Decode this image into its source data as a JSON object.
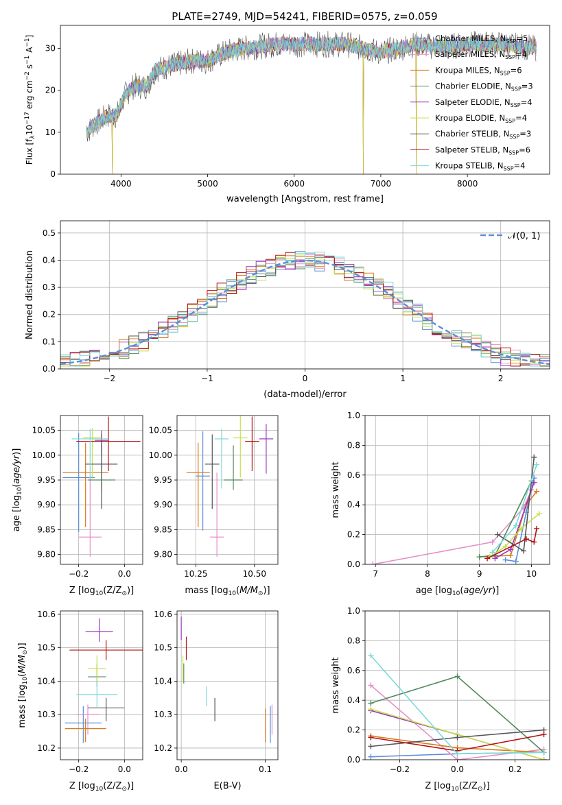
{
  "figure_title": "PLATE=2749, MJD=54241, FIBERID=0575, z=0.059",
  "colors": [
    "#5b8fd6",
    "#e58fc6",
    "#d97a1d",
    "#4f8a5b",
    "#9b34c4",
    "#c8e04a",
    "#555555",
    "#b01414",
    "#7dd9d9"
  ],
  "chart_data": [
    {
      "id": "spectrum",
      "type": "line",
      "title": "PLATE=2749, MJD=54241, FIBERID=0575, z=0.059",
      "xlabel": "wavelength [Angstrom, rest frame]",
      "ylabel": "Flux [f",
      "xlim": [
        3300,
        8950
      ],
      "ylim": [
        0,
        35.5
      ],
      "xticks": [
        4000,
        5000,
        6000,
        7000,
        8000
      ],
      "yticks": [
        0,
        10,
        20,
        30
      ],
      "xtick_labels": [
        "4000",
        "5000",
        "6000",
        "7000",
        "8000"
      ],
      "ytick_labels": [
        "0",
        "10",
        "20",
        "30"
      ],
      "legend_position": "right",
      "legend": [
        {
          "model": "Chabrier MILES",
          "n": "5"
        },
        {
          "model": "Salpeter MILES",
          "n": "4"
        },
        {
          "model": "Kroupa MILES",
          "n": "6"
        },
        {
          "model": "Chabrier ELODIE",
          "n": "3"
        },
        {
          "model": "Salpeter ELODIE",
          "n": "4"
        },
        {
          "model": "Kroupa ELODIE",
          "n": "4"
        },
        {
          "model": "Chabrier STELIB",
          "n": "3"
        },
        {
          "model": "Salpeter STELIB",
          "n": "6"
        },
        {
          "model": "Kroupa STELIB",
          "n": "4"
        }
      ],
      "continuum": {
        "x": [
          3600,
          3700,
          3850,
          3950,
          4050,
          4150,
          4300,
          4400,
          4600,
          4800,
          5000,
          5200,
          5400,
          5600,
          5800,
          6000,
          6200,
          6400,
          6600,
          6800,
          7000,
          7200,
          7400,
          7600,
          7800,
          8000,
          8200,
          8400,
          8600,
          8800
        ],
        "y": [
          10,
          12,
          14,
          14,
          19,
          21,
          21,
          25,
          26,
          27,
          27,
          29,
          30,
          30.5,
          31,
          31,
          31,
          31,
          31,
          30,
          29,
          30,
          31,
          30.5,
          30.5,
          31,
          31,
          31,
          30.5,
          30
        ]
      },
      "gaps": [
        {
          "x": 3900,
          "y": 0
        },
        {
          "x": 6800,
          "y": 0
        },
        {
          "x": 7410,
          "y": 0
        }
      ]
    },
    {
      "id": "residuals",
      "type": "histogram",
      "xlabel": "(data-model)/error",
      "ylabel": "Normed distribution",
      "xlim": [
        -2.5,
        2.5
      ],
      "ylim": [
        0,
        0.545
      ],
      "xticks": [
        -2,
        -1,
        0,
        1,
        2
      ],
      "yticks": [
        0,
        0.1,
        0.2,
        0.3,
        0.4,
        0.5
      ],
      "xtick_labels": [
        "−2",
        "−1",
        "0",
        "1",
        "2"
      ],
      "ytick_labels": [
        "0.0",
        "0.1",
        "0.2",
        "0.3",
        "0.4",
        "0.5"
      ],
      "legend_label": "𝒩(0, 1)",
      "legend_position": "top-right",
      "bin_width": 0.1,
      "series_offsets": [
        0.012,
        -0.018,
        0.02,
        -0.01,
        0.025,
        -0.022,
        0.005,
        0.015,
        -0.03
      ]
    },
    {
      "id": "age-vs-Z",
      "type": "scatter",
      "xlabel": "Z [log",
      "xlabel_tail": "(Z/Z",
      "ylabel": "age  [log",
      "xlim": [
        -0.28,
        0.08
      ],
      "ylim": [
        9.78,
        10.08
      ],
      "xticks": [
        -0.2,
        0.0
      ],
      "yticks": [
        9.8,
        9.85,
        9.9,
        9.95,
        10.0,
        10.05
      ],
      "xtick_labels": [
        "−0.2",
        "0.0"
      ],
      "ytick_labels": [
        "9.80",
        "9.85",
        "9.90",
        "9.95",
        "10.00",
        "10.05"
      ],
      "points": [
        {
          "x": -0.2,
          "y": 9.955,
          "dx": 0.07,
          "dy_lo": 0.11,
          "dy_hi": 0.09
        },
        {
          "x": -0.15,
          "y": 9.835,
          "dx": 0.05,
          "dy_lo": 0.04,
          "dy_hi": 0.13
        },
        {
          "x": -0.17,
          "y": 9.965,
          "dx": 0.1,
          "dy_lo": 0.11,
          "dy_hi": 0.06
        },
        {
          "x": -0.1,
          "y": 9.95,
          "dx": 0.06,
          "dy_lo": 0.02,
          "dy_hi": 0.07
        },
        {
          "x": -0.1,
          "y": 10.03,
          "dx": 0.03,
          "dy_lo": 0.03,
          "dy_hi": 0.02
        },
        {
          "x": -0.14,
          "y": 10.035,
          "dx": 0.04,
          "dy_lo": 0.08,
          "dy_hi": 0.02
        },
        {
          "x": -0.1,
          "y": 9.982,
          "dx": 0.07,
          "dy_lo": 0.09,
          "dy_hi": 0.06
        },
        {
          "x": -0.07,
          "y": 10.028,
          "dx": 0.14,
          "dy_lo": 0.06,
          "dy_hi": 0.05
        },
        {
          "x": -0.15,
          "y": 10.033,
          "dx": 0.08,
          "dy_lo": 0.08,
          "dy_hi": 0.02
        }
      ]
    },
    {
      "id": "age-vs-mass",
      "type": "scatter",
      "xlabel": "mass [log",
      "xlabel_tail": "(M/M",
      "xlim": [
        10.17,
        10.6
      ],
      "ylim": [
        9.78,
        10.08
      ],
      "xticks": [
        10.25,
        10.5
      ],
      "yticks": [
        9.8,
        9.85,
        9.9,
        9.95,
        10.0,
        10.05
      ],
      "xtick_labels": [
        "10.25",
        "10.50"
      ],
      "ytick_labels": [
        "9.80",
        "9.85",
        "9.90",
        "9.95",
        "10.00",
        "10.05"
      ],
      "points": [
        {
          "x": 10.28,
          "y": 9.958,
          "dx": 0.03,
          "dy_lo": 0.11,
          "dy_hi": 0.09
        },
        {
          "x": 10.34,
          "y": 9.835,
          "dx": 0.03,
          "dy_lo": 0.04,
          "dy_hi": 0.13
        },
        {
          "x": 10.26,
          "y": 9.965,
          "dx": 0.05,
          "dy_lo": 0.11,
          "dy_hi": 0.06
        },
        {
          "x": 10.41,
          "y": 9.95,
          "dx": 0.04,
          "dy_lo": 0.02,
          "dy_hi": 0.07
        },
        {
          "x": 10.55,
          "y": 10.033,
          "dx": 0.03,
          "dy_lo": 0.07,
          "dy_hi": 0.03
        },
        {
          "x": 10.44,
          "y": 10.035,
          "dx": 0.03,
          "dy_lo": 0.08,
          "dy_hi": 0.05
        },
        {
          "x": 10.32,
          "y": 9.982,
          "dx": 0.03,
          "dy_lo": 0.09,
          "dy_hi": 0.06
        },
        {
          "x": 10.49,
          "y": 10.028,
          "dx": 0.03,
          "dy_lo": 0.06,
          "dy_hi": 0.05
        },
        {
          "x": 10.36,
          "y": 10.033,
          "dx": 0.03,
          "dy_lo": 0.1,
          "dy_hi": 0.02
        }
      ]
    },
    {
      "id": "weight-vs-age",
      "type": "line",
      "xlabel": "age  [log",
      "ylabel": "mass weight",
      "xlim": [
        6.8,
        10.35
      ],
      "ylim": [
        0,
        1
      ],
      "xticks": [
        7,
        8,
        9,
        10
      ],
      "yticks": [
        0,
        0.2,
        0.4,
        0.6,
        0.8,
        1.0
      ],
      "xtick_labels": [
        "7",
        "8",
        "9",
        "10"
      ],
      "ytick_labels": [
        "0.0",
        "0.2",
        "0.4",
        "0.6",
        "0.8",
        "1.0"
      ],
      "series": [
        {
          "x": [
            9.5,
            9.7,
            9.9,
            10.05
          ],
          "y": [
            0.03,
            0.02,
            0.35,
            0.58
          ]
        },
        {
          "x": [
            6.95,
            9.25,
            9.85,
            10.0
          ],
          "y": [
            0.0,
            0.15,
            0.38,
            0.5
          ]
        },
        {
          "x": [
            9.0,
            9.6,
            9.9,
            10.1
          ],
          "y": [
            0.05,
            0.06,
            0.4,
            0.49
          ]
        },
        {
          "x": [
            9.0,
            9.3,
            10.0
          ],
          "y": [
            0.05,
            0.06,
            0.56
          ]
        },
        {
          "x": [
            9.3,
            9.6,
            10.05
          ],
          "y": [
            0.04,
            0.1,
            0.55
          ]
        },
        {
          "x": [
            9.2,
            9.5,
            9.8,
            10.15
          ],
          "y": [
            0.05,
            0.12,
            0.24,
            0.34
          ]
        },
        {
          "x": [
            9.35,
            9.85,
            10.05
          ],
          "y": [
            0.2,
            0.09,
            0.72
          ]
        },
        {
          "x": [
            9.15,
            9.9,
            10.05,
            10.1
          ],
          "y": [
            0.04,
            0.17,
            0.15,
            0.24
          ]
        },
        {
          "x": [
            9.25,
            9.7,
            10.1
          ],
          "y": [
            0.08,
            0.26,
            0.67
          ]
        }
      ]
    },
    {
      "id": "mass-vs-Z",
      "type": "scatter",
      "xlabel": "Z [log",
      "xlabel_tail": "(Z/Z",
      "ylabel": "mass [log",
      "xlim": [
        -0.28,
        0.08
      ],
      "ylim": [
        10.165,
        10.61
      ],
      "xticks": [
        -0.2,
        0.0
      ],
      "yticks": [
        10.2,
        10.3,
        10.4,
        10.5,
        10.6
      ],
      "xtick_labels": [
        "−0.2",
        "0.0"
      ],
      "ytick_labels": [
        "10.2",
        "10.3",
        "10.4",
        "10.5",
        "10.6"
      ],
      "points": [
        {
          "x": -0.18,
          "y": 10.275,
          "dx": 0.08,
          "dy_lo": 0.06,
          "dy_hi": 0.05
        },
        {
          "x": -0.16,
          "y": 10.3,
          "dx": 0.05,
          "dy_lo": 0.06,
          "dy_hi": 0.03
        },
        {
          "x": -0.17,
          "y": 10.258,
          "dx": 0.09,
          "dy_lo": 0.04,
          "dy_hi": 0.03
        },
        {
          "x": -0.12,
          "y": 10.413,
          "dx": 0.04,
          "dy_lo": 0.03,
          "dy_hi": 0.04
        },
        {
          "x": -0.11,
          "y": 10.548,
          "dx": 0.06,
          "dy_lo": 0.03,
          "dy_hi": 0.04
        },
        {
          "x": -0.12,
          "y": 10.437,
          "dx": 0.04,
          "dy_lo": 0.04,
          "dy_hi": 0.04
        },
        {
          "x": -0.08,
          "y": 10.32,
          "dx": 0.08,
          "dy_lo": 0.04,
          "dy_hi": 0.03
        },
        {
          "x": -0.08,
          "y": 10.493,
          "dx": 0.16,
          "dy_lo": 0.03,
          "dy_hi": 0.03
        },
        {
          "x": -0.12,
          "y": 10.36,
          "dx": 0.09,
          "dy_lo": 0.04,
          "dy_hi": 0.04
        }
      ]
    },
    {
      "id": "mass-vs-ebv",
      "type": "scatter",
      "xlabel": "E(B-V)",
      "xlim": [
        -0.005,
        0.115
      ],
      "ylim": [
        10.165,
        10.61
      ],
      "xticks": [
        0.0,
        0.1
      ],
      "yticks": [
        10.2,
        10.3,
        10.4,
        10.5,
        10.6
      ],
      "xtick_labels": [
        "0.0",
        "0.1"
      ],
      "ytick_labels": [
        "10.2",
        "10.3",
        "10.4",
        "10.5",
        "10.6"
      ],
      "points": [
        {
          "x": 0.106,
          "y": 10.275,
          "dy_lo": 0.06,
          "dy_hi": 0.05
        },
        {
          "x": 0.108,
          "y": 10.3,
          "dy_lo": 0.06,
          "dy_hi": 0.03
        },
        {
          "x": 0.1,
          "y": 10.258,
          "dy_lo": 0.04,
          "dy_hi": 0.06
        },
        {
          "x": 0.003,
          "y": 10.413,
          "dy_lo": 0.02,
          "dy_hi": 0.04
        },
        {
          "x": 0.0,
          "y": 10.553,
          "dy_lo": 0.03,
          "dy_hi": 0.04
        },
        {
          "x": 0.002,
          "y": 10.437,
          "dy_lo": 0.04,
          "dy_hi": 0.04
        },
        {
          "x": 0.04,
          "y": 10.32,
          "dy_lo": 0.04,
          "dy_hi": 0.03
        },
        {
          "x": 0.006,
          "y": 10.493,
          "dy_lo": 0.03,
          "dy_hi": 0.04
        },
        {
          "x": 0.03,
          "y": 10.355,
          "dy_lo": 0.03,
          "dy_hi": 0.03
        }
      ]
    },
    {
      "id": "weight-vs-Z",
      "type": "line",
      "xlabel": "Z [log",
      "xlabel_tail": "(Z/Z",
      "ylabel": "mass weight",
      "xlim": [
        -0.32,
        0.32
      ],
      "ylim": [
        0,
        1
      ],
      "xticks": [
        -0.2,
        0.0,
        0.2
      ],
      "yticks": [
        0,
        0.2,
        0.4,
        0.6,
        0.8,
        1.0
      ],
      "xtick_labels": [
        "−0.2",
        "0.0",
        "0.2"
      ],
      "ytick_labels": [
        "0.0",
        "0.2",
        "0.4",
        "0.6",
        "0.8",
        "1.0"
      ],
      "series": [
        {
          "x": [
            -0.3,
            0.0,
            0.3
          ],
          "y": [
            0.02,
            0.04,
            0.05
          ]
        },
        {
          "x": [
            -0.3,
            0.0,
            0.3
          ],
          "y": [
            0.5,
            0.0,
            0.07
          ]
        },
        {
          "x": [
            -0.3,
            0.0,
            0.3
          ],
          "y": [
            0.16,
            0.08,
            0.05
          ]
        },
        {
          "x": [
            -0.3,
            0.0,
            0.3
          ],
          "y": [
            0.38,
            0.56,
            0.05
          ]
        },
        {
          "x": [
            -0.3,
            0.0,
            0.3
          ],
          "y": [
            0.33,
            0.17,
            0.0
          ]
        },
        {
          "x": [
            -0.3,
            0.0,
            0.3
          ],
          "y": [
            0.34,
            0.17,
            0.0
          ]
        },
        {
          "x": [
            -0.3,
            0.0,
            0.3
          ],
          "y": [
            0.09,
            0.15,
            0.2
          ]
        },
        {
          "x": [
            -0.3,
            0.0,
            0.3
          ],
          "y": [
            0.15,
            0.06,
            0.17
          ]
        },
        {
          "x": [
            -0.3,
            0.0,
            0.3
          ],
          "y": [
            0.7,
            0.04,
            0.05
          ]
        }
      ]
    }
  ]
}
